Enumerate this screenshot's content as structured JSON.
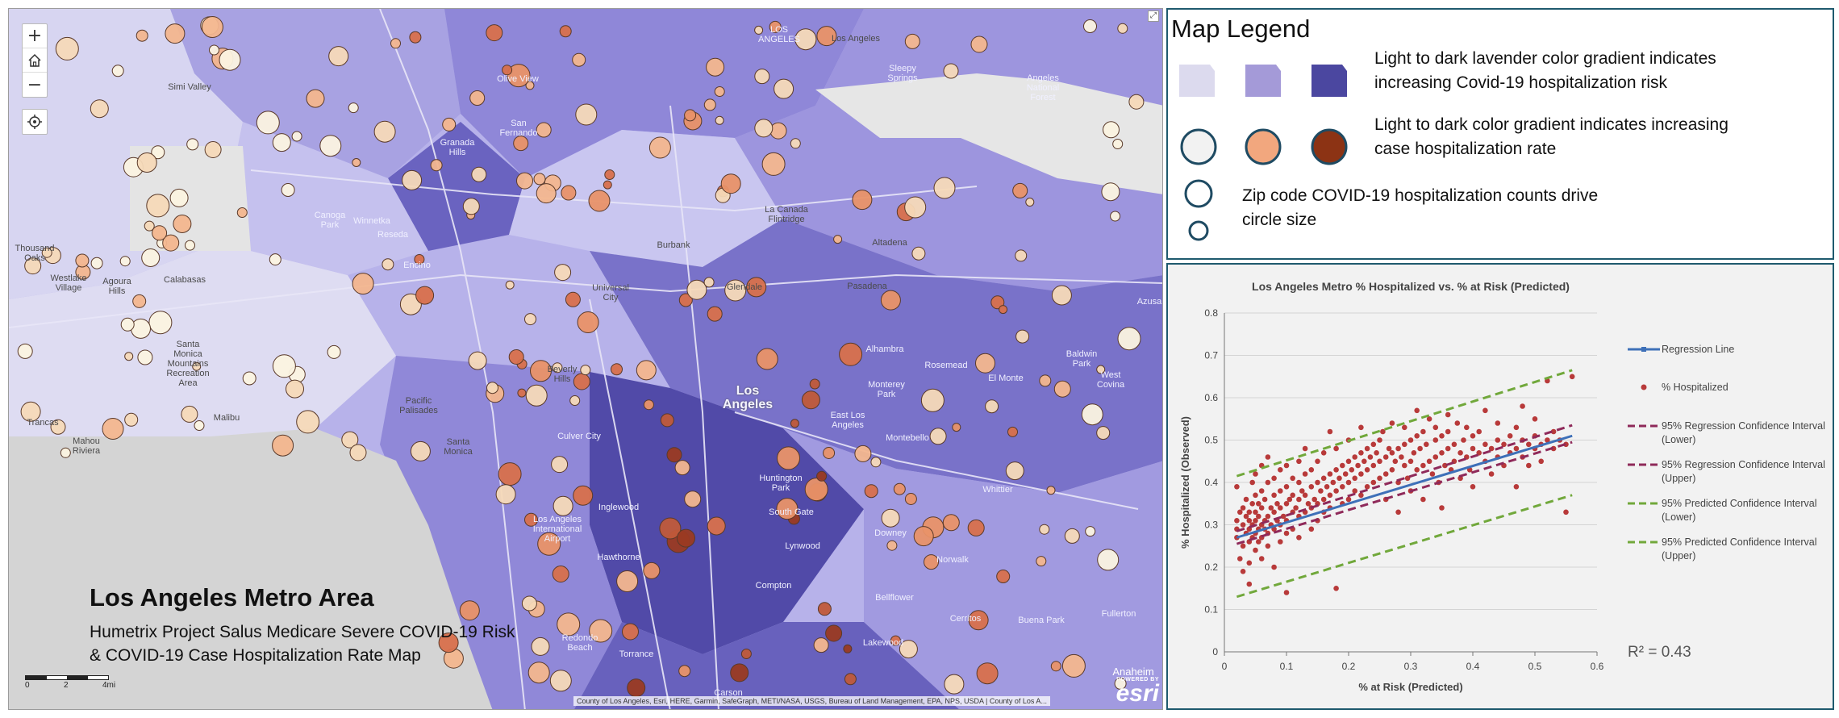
{
  "map": {
    "title": "Los Angeles Metro Area",
    "subtitle_line1": "Humetrix Project Salus Medicare Severe COVID-19 Risk",
    "subtitle_line2": "& COVID-19 Case Hospitalization Rate  Map",
    "controls": {
      "zoom_in": "+",
      "home_icon": "home-icon",
      "zoom_out": "−",
      "locate_icon": "locate-icon"
    },
    "scale": {
      "labels": [
        "0",
        "2",
        "4mi"
      ]
    },
    "attribution": "County of Los Angeles, Esri, HERE, Garmin, SafeGraph, METI/NASA, USGS, Bureau of Land Management, EPA, NPS, USDA | County of Los A...",
    "esri": {
      "powered_by": "POWERED BY",
      "name": "esri"
    },
    "places": {
      "simi_valley": "Simi Valley",
      "olive_view": "Olive View",
      "los_angeles_top": "LOS\nANGELES",
      "los_angeles_n": "Los Angeles",
      "sleepy": "Sleepy\nSprings",
      "angeles": "Angeles\nNational\nForest",
      "san_fernando": "San\nFernando",
      "granada": "Granada\nHills",
      "canoga": "Canoga\nPark",
      "winnetka": "Winnetka",
      "reseda": "Reseda",
      "la_canada": "La Canada\nFlintridge",
      "altadena": "Altadena",
      "burbank": "Burbank",
      "thousand_oaks": "Thousand\nOaks",
      "westlake": "Westlake\nVillage",
      "agoura": "Agoura\nHills",
      "calabasas": "Calabasas",
      "encino": "Encino",
      "universal": "Universal\nCity",
      "glendale": "Glendale",
      "pasadena": "Pasadena",
      "santa_monica_mts": "Santa\nMonica\nMountains\nRecreation\nArea",
      "beverly": "Beverly\nHills",
      "los_angeles_c": "Los\nAngeles",
      "alhambra": "Alhambra",
      "rosemead": "Rosemead",
      "el_monte": "El Monte",
      "baldwin": "Baldwin\nPark",
      "west_covina": "West\nCovina",
      "azusa": "Azusa",
      "monterey_park": "Monterey\nPark",
      "east_la": "East Los\nAngeles",
      "montebello": "Montebello",
      "pacific": "Pacific\nPalisades",
      "malibu": "Malibu",
      "trancas": "Trancas",
      "malibu_riviera": "Mahou\nRiviera",
      "santa_monica": "Santa\nMonica",
      "culver": "Culver City",
      "inglewood": "Inglewood",
      "huntington": "Huntington\nPark",
      "south_gate": "South Gate",
      "whittier": "Whittier",
      "lax": "Los Angeles\nInternational\nAirport",
      "hawthorne": "Hawthorne",
      "lynwood": "Lynwood",
      "downey": "Downey",
      "norwalk": "Norwalk",
      "compton": "Compton",
      "bellflower": "Bellflower",
      "cerritos": "Cerritos",
      "buena": "Buena Park",
      "fullerton": "Fullerton",
      "redondo": "Redondo\nBeach",
      "torrance": "Torrance",
      "lakewood": "Lakewood",
      "carson": "Carson",
      "anaheim": "Anaheim"
    }
  },
  "legend": {
    "title": "Map Legend",
    "row1_text_line1": "Light to dark lavender color gradient indicates",
    "row1_text_line2": "increasing Covid-19 hospitalization risk",
    "row2_text_line1": "Light to dark color gradient indicates increasing",
    "row2_text_line2": "case hospitalization rate",
    "row3_text_line1": "Zip code COVID-19 hospitalization counts drive",
    "row3_text_line2": "circle size",
    "risk_colors": [
      "#dcdaee",
      "#a49ad8",
      "#4b47a0"
    ],
    "rate_colors": [
      "#f2f2f2",
      "#f2a77e",
      "#8c3314"
    ],
    "circle_stroke": "#1f4b63"
  },
  "chart_data": {
    "type": "scatter",
    "title": "Los Angeles Metro % Hospitalized vs. % at Risk (Predicted)",
    "xlabel": "% at Risk (Predicted)",
    "ylabel": "% Hospitalized (Observed)",
    "xlim": [
      0,
      0.6
    ],
    "ylim": [
      0,
      0.8
    ],
    "x_ticks": [
      "0",
      "0.1",
      "0.2",
      "0.3",
      "0.4",
      "0.5",
      "0.6"
    ],
    "y_ticks": [
      "0",
      "0.1",
      "0.2",
      "0.3",
      "0.4",
      "0.5",
      "0.6",
      "0.7",
      "0.8"
    ],
    "grid": "horizontal",
    "annotation": "R² = 0.43",
    "legend": [
      {
        "label": "Regression Line",
        "style": "line-marker",
        "color": "#3e70b8"
      },
      {
        "label": "% Hospitalized",
        "style": "marker",
        "color": "#b83a3a"
      },
      {
        "label": "95% Regression Confidence Interval (Lower)",
        "style": "dashed",
        "color": "#8f2a5a"
      },
      {
        "label": "95% Regression Confidence Interval (Upper)",
        "style": "dashed",
        "color": "#8f2a5a"
      },
      {
        "label": "95% Predicted Confidence Interval (Lower)",
        "style": "dashed",
        "color": "#71a83b"
      },
      {
        "label": "95% Predicted Confidence Interval (Upper)",
        "style": "dashed",
        "color": "#71a83b"
      }
    ],
    "regression": {
      "x": [
        0.02,
        0.56
      ],
      "y": [
        0.27,
        0.51
      ]
    },
    "reg_ci_lower": {
      "x": [
        0.02,
        0.56
      ],
      "y": [
        0.255,
        0.495
      ]
    },
    "reg_ci_upper": {
      "x": [
        0.02,
        0.56
      ],
      "y": [
        0.285,
        0.535
      ]
    },
    "pred_ci_lower": {
      "x": [
        0.02,
        0.56
      ],
      "y": [
        0.13,
        0.37
      ]
    },
    "pred_ci_upper": {
      "x": [
        0.02,
        0.56
      ],
      "y": [
        0.415,
        0.665
      ]
    },
    "points": [
      [
        0.02,
        0.39
      ],
      [
        0.02,
        0.31
      ],
      [
        0.02,
        0.29
      ],
      [
        0.02,
        0.27
      ],
      [
        0.025,
        0.22
      ],
      [
        0.025,
        0.33
      ],
      [
        0.03,
        0.25
      ],
      [
        0.03,
        0.3
      ],
      [
        0.03,
        0.34
      ],
      [
        0.03,
        0.19
      ],
      [
        0.035,
        0.28
      ],
      [
        0.035,
        0.32
      ],
      [
        0.035,
        0.36
      ],
      [
        0.04,
        0.26
      ],
      [
        0.04,
        0.29
      ],
      [
        0.04,
        0.31
      ],
      [
        0.04,
        0.33
      ],
      [
        0.04,
        0.16
      ],
      [
        0.04,
        0.21
      ],
      [
        0.045,
        0.27
      ],
      [
        0.045,
        0.3
      ],
      [
        0.045,
        0.35
      ],
      [
        0.045,
        0.4
      ],
      [
        0.05,
        0.28
      ],
      [
        0.05,
        0.31
      ],
      [
        0.05,
        0.33
      ],
      [
        0.05,
        0.24
      ],
      [
        0.05,
        0.37
      ],
      [
        0.05,
        0.42
      ],
      [
        0.055,
        0.29
      ],
      [
        0.055,
        0.26
      ],
      [
        0.055,
        0.32
      ],
      [
        0.055,
        0.35
      ],
      [
        0.06,
        0.3
      ],
      [
        0.06,
        0.27
      ],
      [
        0.06,
        0.34
      ],
      [
        0.06,
        0.38
      ],
      [
        0.06,
        0.44
      ],
      [
        0.06,
        0.22
      ],
      [
        0.065,
        0.31
      ],
      [
        0.065,
        0.29
      ],
      [
        0.065,
        0.36
      ],
      [
        0.07,
        0.28
      ],
      [
        0.07,
        0.32
      ],
      [
        0.07,
        0.4
      ],
      [
        0.07,
        0.46
      ],
      [
        0.07,
        0.25
      ],
      [
        0.075,
        0.3
      ],
      [
        0.075,
        0.34
      ],
      [
        0.08,
        0.29
      ],
      [
        0.08,
        0.33
      ],
      [
        0.08,
        0.37
      ],
      [
        0.08,
        0.41
      ],
      [
        0.08,
        0.2
      ],
      [
        0.085,
        0.31
      ],
      [
        0.085,
        0.35
      ],
      [
        0.09,
        0.3
      ],
      [
        0.09,
        0.34
      ],
      [
        0.09,
        0.38
      ],
      [
        0.09,
        0.43
      ],
      [
        0.09,
        0.26
      ],
      [
        0.095,
        0.32
      ],
      [
        0.1,
        0.31
      ],
      [
        0.1,
        0.35
      ],
      [
        0.1,
        0.39
      ],
      [
        0.1,
        0.44
      ],
      [
        0.1,
        0.28
      ],
      [
        0.1,
        0.14
      ],
      [
        0.105,
        0.36
      ],
      [
        0.11,
        0.33
      ],
      [
        0.11,
        0.37
      ],
      [
        0.11,
        0.41
      ],
      [
        0.11,
        0.29
      ],
      [
        0.115,
        0.34
      ],
      [
        0.12,
        0.32
      ],
      [
        0.12,
        0.36
      ],
      [
        0.12,
        0.4
      ],
      [
        0.12,
        0.45
      ],
      [
        0.12,
        0.27
      ],
      [
        0.125,
        0.38
      ],
      [
        0.13,
        0.33
      ],
      [
        0.13,
        0.37
      ],
      [
        0.13,
        0.42
      ],
      [
        0.13,
        0.48
      ],
      [
        0.135,
        0.35
      ],
      [
        0.14,
        0.34
      ],
      [
        0.14,
        0.39
      ],
      [
        0.14,
        0.43
      ],
      [
        0.14,
        0.29
      ],
      [
        0.145,
        0.36
      ],
      [
        0.15,
        0.35
      ],
      [
        0.15,
        0.4
      ],
      [
        0.15,
        0.45
      ],
      [
        0.15,
        0.31
      ],
      [
        0.155,
        0.38
      ],
      [
        0.16,
        0.36
      ],
      [
        0.16,
        0.41
      ],
      [
        0.16,
        0.47
      ],
      [
        0.16,
        0.33
      ],
      [
        0.165,
        0.39
      ],
      [
        0.17,
        0.37
      ],
      [
        0.17,
        0.42
      ],
      [
        0.17,
        0.52
      ],
      [
        0.17,
        0.34
      ],
      [
        0.175,
        0.4
      ],
      [
        0.18,
        0.38
      ],
      [
        0.18,
        0.43
      ],
      [
        0.18,
        0.48
      ],
      [
        0.18,
        0.15
      ],
      [
        0.185,
        0.41
      ],
      [
        0.19,
        0.39
      ],
      [
        0.19,
        0.44
      ],
      [
        0.19,
        0.35
      ],
      [
        0.195,
        0.42
      ],
      [
        0.2,
        0.4
      ],
      [
        0.2,
        0.45
      ],
      [
        0.2,
        0.5
      ],
      [
        0.2,
        0.36
      ],
      [
        0.205,
        0.43
      ],
      [
        0.21,
        0.41
      ],
      [
        0.21,
        0.46
      ],
      [
        0.21,
        0.38
      ],
      [
        0.215,
        0.44
      ],
      [
        0.22,
        0.42
      ],
      [
        0.22,
        0.47
      ],
      [
        0.22,
        0.53
      ],
      [
        0.22,
        0.37
      ],
      [
        0.225,
        0.45
      ],
      [
        0.23,
        0.43
      ],
      [
        0.23,
        0.48
      ],
      [
        0.23,
        0.39
      ],
      [
        0.235,
        0.46
      ],
      [
        0.24,
        0.44
      ],
      [
        0.24,
        0.49
      ],
      [
        0.24,
        0.4
      ],
      [
        0.245,
        0.47
      ],
      [
        0.25,
        0.45
      ],
      [
        0.25,
        0.5
      ],
      [
        0.25,
        0.41
      ],
      [
        0.255,
        0.52
      ],
      [
        0.26,
        0.46
      ],
      [
        0.26,
        0.42
      ],
      [
        0.26,
        0.36
      ],
      [
        0.265,
        0.48
      ],
      [
        0.27,
        0.47
      ],
      [
        0.27,
        0.43
      ],
      [
        0.27,
        0.54
      ],
      [
        0.275,
        0.45
      ],
      [
        0.28,
        0.48
      ],
      [
        0.28,
        0.4
      ],
      [
        0.28,
        0.33
      ],
      [
        0.285,
        0.46
      ],
      [
        0.29,
        0.49
      ],
      [
        0.29,
        0.44
      ],
      [
        0.29,
        0.53
      ],
      [
        0.295,
        0.41
      ],
      [
        0.3,
        0.5
      ],
      [
        0.3,
        0.45
      ],
      [
        0.3,
        0.38
      ],
      [
        0.305,
        0.47
      ],
      [
        0.31,
        0.51
      ],
      [
        0.31,
        0.43
      ],
      [
        0.31,
        0.57
      ],
      [
        0.315,
        0.48
      ],
      [
        0.32,
        0.44
      ],
      [
        0.32,
        0.52
      ],
      [
        0.32,
        0.36
      ],
      [
        0.325,
        0.49
      ],
      [
        0.33,
        0.45
      ],
      [
        0.33,
        0.55
      ],
      [
        0.335,
        0.42
      ],
      [
        0.34,
        0.5
      ],
      [
        0.34,
        0.46
      ],
      [
        0.34,
        0.53
      ],
      [
        0.345,
        0.4
      ],
      [
        0.35,
        0.47
      ],
      [
        0.35,
        0.51
      ],
      [
        0.35,
        0.34
      ],
      [
        0.355,
        0.44
      ],
      [
        0.36,
        0.48
      ],
      [
        0.36,
        0.52
      ],
      [
        0.36,
        0.56
      ],
      [
        0.365,
        0.43
      ],
      [
        0.37,
        0.49
      ],
      [
        0.37,
        0.45
      ],
      [
        0.375,
        0.54
      ],
      [
        0.38,
        0.47
      ],
      [
        0.38,
        0.41
      ],
      [
        0.385,
        0.5
      ],
      [
        0.39,
        0.46
      ],
      [
        0.39,
        0.53
      ],
      [
        0.395,
        0.43
      ],
      [
        0.4,
        0.48
      ],
      [
        0.4,
        0.51
      ],
      [
        0.4,
        0.39
      ],
      [
        0.41,
        0.47
      ],
      [
        0.41,
        0.52
      ],
      [
        0.42,
        0.45
      ],
      [
        0.42,
        0.49
      ],
      [
        0.42,
        0.57
      ],
      [
        0.43,
        0.48
      ],
      [
        0.43,
        0.42
      ],
      [
        0.44,
        0.5
      ],
      [
        0.44,
        0.46
      ],
      [
        0.44,
        0.54
      ],
      [
        0.45,
        0.44
      ],
      [
        0.45,
        0.49
      ],
      [
        0.46,
        0.51
      ],
      [
        0.46,
        0.47
      ],
      [
        0.47,
        0.48
      ],
      [
        0.47,
        0.53
      ],
      [
        0.47,
        0.39
      ],
      [
        0.48,
        0.5
      ],
      [
        0.48,
        0.46
      ],
      [
        0.48,
        0.58
      ],
      [
        0.49,
        0.49
      ],
      [
        0.49,
        0.44
      ],
      [
        0.5,
        0.51
      ],
      [
        0.5,
        0.48
      ],
      [
        0.5,
        0.55
      ],
      [
        0.51,
        0.49
      ],
      [
        0.51,
        0.45
      ],
      [
        0.52,
        0.5
      ],
      [
        0.52,
        0.64
      ],
      [
        0.53,
        0.48
      ],
      [
        0.53,
        0.52
      ],
      [
        0.54,
        0.5
      ],
      [
        0.55,
        0.49
      ],
      [
        0.55,
        0.33
      ],
      [
        0.56,
        0.65
      ]
    ]
  }
}
